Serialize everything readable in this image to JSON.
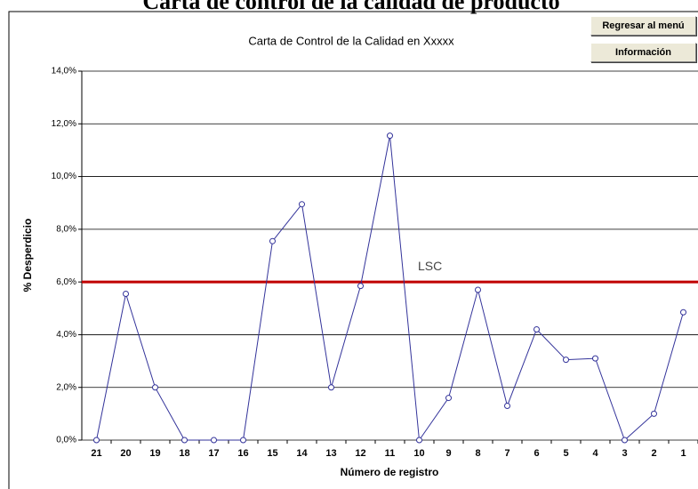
{
  "header": {
    "title": "Carta de control de la calidad de producto",
    "buttons": [
      "Regresar al menú",
      "Información"
    ]
  },
  "chart_data": {
    "type": "line",
    "title": "Carta de Control de la Calidad en Xxxxx",
    "x_label": "Número de registro",
    "y_label": "% Desperdicio",
    "categories": [
      "21",
      "20",
      "19",
      "18",
      "17",
      "16",
      "15",
      "14",
      "13",
      "12",
      "11",
      "10",
      "9",
      "8",
      "7",
      "6",
      "5",
      "4",
      "3",
      "2",
      "1"
    ],
    "series": [
      {
        "name": "% Desperdicio",
        "color": "#33339a",
        "values": [
          0,
          5.55,
          2.0,
          0,
          0,
          0,
          7.55,
          8.95,
          2.0,
          5.85,
          11.55,
          0,
          1.6,
          5.7,
          1.3,
          4.2,
          3.05,
          3.1,
          0,
          1.0,
          4.85
        ]
      }
    ],
    "ylim": [
      0,
      14
    ],
    "yticks": [
      {
        "value": 0,
        "label": "0,0%"
      },
      {
        "value": 2,
        "label": "2,0%"
      },
      {
        "value": 4,
        "label": "4,0%"
      },
      {
        "value": 6,
        "label": "6,0%"
      },
      {
        "value": 8,
        "label": "8,0%"
      },
      {
        "value": 10,
        "label": "10,0%"
      },
      {
        "value": 12,
        "label": "12,0%"
      },
      {
        "value": 14,
        "label": "14,0%"
      }
    ],
    "grid": true,
    "reference_lines": [
      {
        "value": 6,
        "label": "LSC",
        "color": "#c00000"
      }
    ]
  }
}
